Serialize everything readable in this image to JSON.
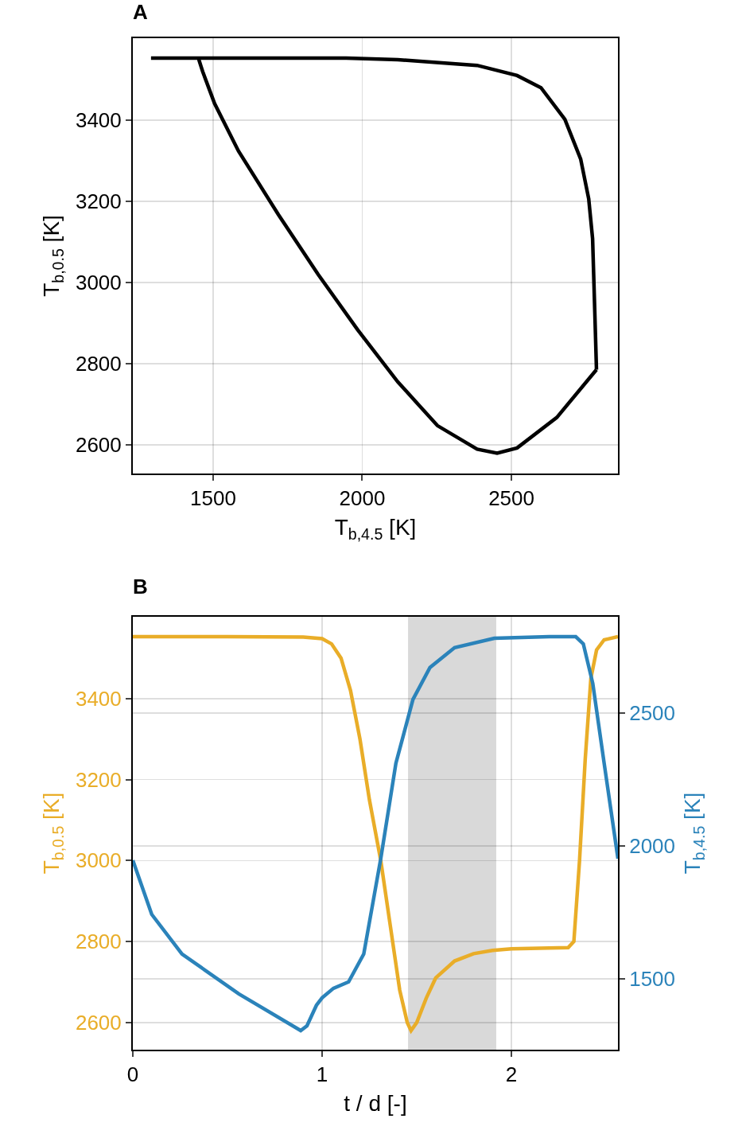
{
  "chart_data": [
    {
      "type": "line",
      "title": "A",
      "xlabel": "T$_{b,4.5}$ [K]",
      "ylabel": "T$_{b,0.5}$ [K]",
      "xlim": [
        1231,
        2857
      ],
      "ylim": [
        2529,
        3602
      ],
      "xticks": [
        1500,
        2000,
        2500
      ],
      "yticks": [
        2600,
        2800,
        3000,
        3200,
        3400
      ],
      "grid": true,
      "marker": "none",
      "line_style": "solid",
      "series": [
        {
          "color": "#000000",
          "x": [
            1292,
            1500,
            1700,
            1946,
            2119,
            2385,
            2519,
            2599,
            2679,
            2732,
            2759,
            2772,
            2780,
            2785
          ],
          "values": [
            3553,
            3553,
            3553,
            3553,
            3549,
            3535,
            3510,
            3480,
            3402,
            3304,
            3206,
            3108,
            2912,
            2785
          ]
        },
        {
          "color": "#000000",
          "x": [
            1452,
            1465,
            1505,
            1585,
            1719,
            1852,
            1985,
            2119,
            2252,
            2385,
            2452,
            2519,
            2652,
            2785
          ],
          "values": [
            3550,
            3520,
            3441,
            3324,
            3167,
            3020,
            2883,
            2755,
            2647,
            2589,
            2579,
            2592,
            2667,
            2785
          ]
        }
      ]
    },
    {
      "type": "line",
      "title": "B",
      "xlabel": "t / d [-]",
      "ylabel": "T$_{b,0.5}$ [K]",
      "y2label": "T$_{b,4.5}$ [K]",
      "xlim": [
        0,
        2.563
      ],
      "ylim": [
        2533,
        3602
      ],
      "y2lim": [
        1233,
        2862
      ],
      "xticks": [
        0,
        1,
        2
      ],
      "yticks": [
        2600,
        2800,
        3000,
        3200,
        3400
      ],
      "y2ticks": [
        1500,
        2000,
        2500
      ],
      "grid": true,
      "marker": "none",
      "line_style": "solid",
      "bands": [
        {
          "axis": "x",
          "from": 1.454,
          "to": 1.92,
          "color": "#d9d9d9"
        }
      ],
      "series": [
        {
          "color": "#e9ad28",
          "x": [
            0,
            0.5,
            0.9,
            1.0,
            1.05,
            1.1,
            1.15,
            1.2,
            1.25,
            1.31,
            1.36,
            1.41,
            1.45,
            1.47,
            1.5,
            1.55,
            1.6,
            1.7,
            1.8,
            1.9,
            2.0,
            2.2,
            2.3,
            2.33,
            2.36,
            2.39,
            2.42,
            2.45,
            2.49,
            2.563
          ],
          "values": [
            3553,
            3553,
            3552,
            3548,
            3535,
            3500,
            3420,
            3300,
            3150,
            3000,
            2840,
            2680,
            2600,
            2580,
            2600,
            2660,
            2710,
            2752,
            2770,
            2778,
            2782,
            2784,
            2785,
            2800,
            3000,
            3250,
            3450,
            3520,
            3545,
            3553
          ]
        },
        {
          "color": "#2b83ba",
          "axis": "y2",
          "x": [
            0,
            0.1,
            0.26,
            0.56,
            0.887,
            0.92,
            0.97,
            1.0,
            1.06,
            1.14,
            1.22,
            1.31,
            1.39,
            1.48,
            1.57,
            1.7,
            1.91,
            2.2,
            2.34,
            2.38,
            2.43,
            2.49,
            2.563
          ],
          "values": [
            1946,
            1742,
            1593,
            1443,
            1305,
            1323,
            1400,
            1428,
            1464,
            1488,
            1593,
            1952,
            2311,
            2551,
            2671,
            2746,
            2781,
            2787,
            2787,
            2760,
            2611,
            2311,
            1952
          ]
        }
      ]
    }
  ]
}
